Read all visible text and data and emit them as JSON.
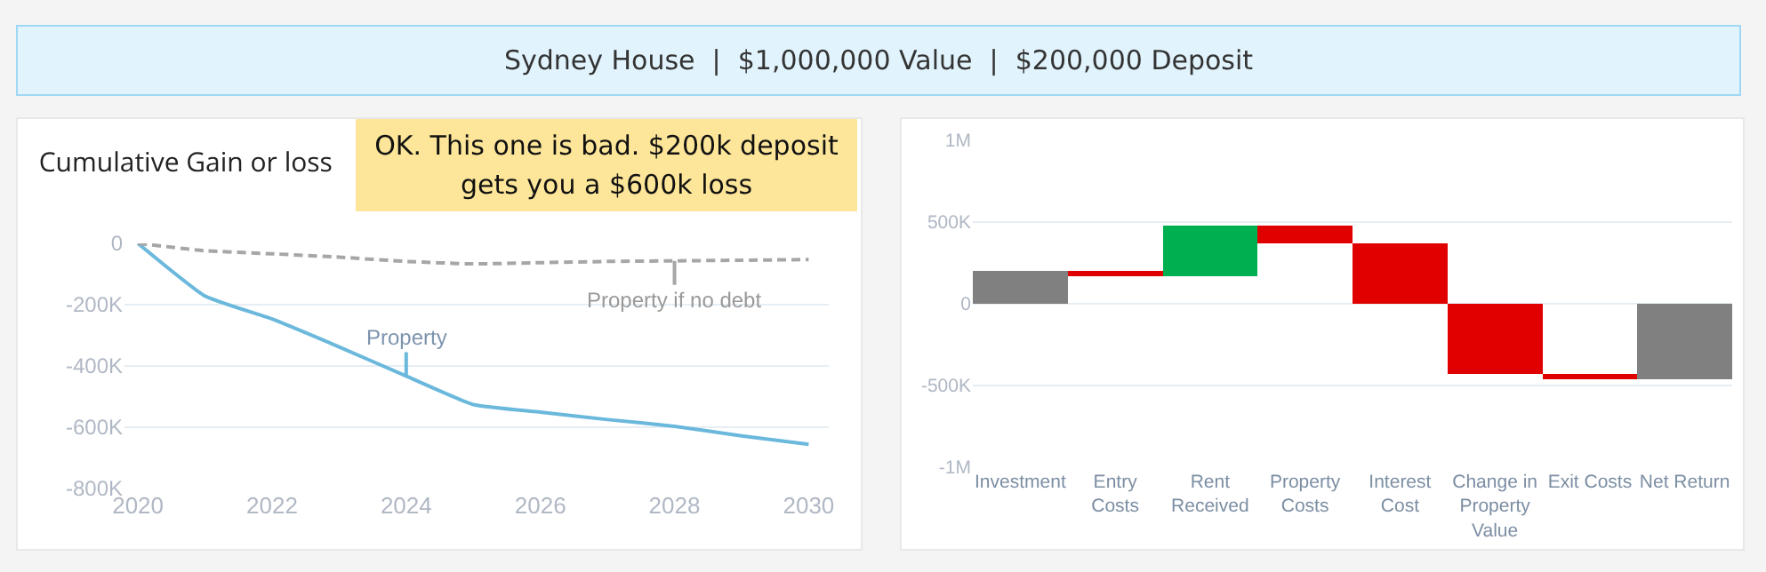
{
  "chart_data": [
    {
      "type": "other",
      "title": "Sydney House  |  $1,000,000 Value  |  $200,000 Deposit"
    },
    {
      "type": "line",
      "title": "Cumulative Gain or loss",
      "annotations": [
        "OK. This one is bad. $200k deposit gets you a $600k loss"
      ],
      "x": [
        2020,
        2021,
        2022,
        2023,
        2024,
        2025,
        2026,
        2027,
        2028,
        2029,
        2030
      ],
      "series": [
        {
          "name": "Property",
          "color": "#6ab8dc",
          "values": [
            0,
            -172000,
            -247000,
            -338000,
            -433000,
            -526000,
            -551000,
            -575000,
            -597000,
            -628000,
            -656000
          ]
        },
        {
          "name": "Property if no debt",
          "color": "#a6a6a6",
          "line_style": "dashed",
          "values": [
            0,
            -24000,
            -34000,
            -45000,
            -59000,
            -67000,
            -63000,
            -59000,
            -57000,
            -55000,
            -53000
          ]
        }
      ],
      "xlim": [
        2019.8,
        2030.3
      ],
      "xticks": [
        2020,
        2022,
        2024,
        2026,
        2028,
        2030
      ],
      "ylim": [
        -800000,
        0
      ],
      "yticks": [
        {
          "value": 0,
          "label": "0"
        },
        {
          "value": -200000,
          "label": "-200K"
        },
        {
          "value": -400000,
          "label": "-400K"
        },
        {
          "value": -600000,
          "label": "-600K"
        },
        {
          "value": -800000,
          "label": "-800K"
        }
      ],
      "grid": "y"
    },
    {
      "type": "bar",
      "categories": [
        "Investment",
        "Entry Costs",
        "Rent Received",
        "Property Costs",
        "Interest Cost",
        "Change in Property Value",
        "Exit Costs",
        "Net Return"
      ],
      "values": [
        200000,
        -30000,
        310000,
        -110000,
        -370000,
        -430000,
        -30000,
        -460000
      ],
      "base": [
        0,
        200000,
        170000,
        480000,
        370000,
        0,
        -430000,
        0
      ],
      "colors": [
        "#808080",
        "#e00000",
        "#00b050",
        "#e00000",
        "#e00000",
        "#e00000",
        "#e00000",
        "#808080"
      ],
      "ylim": [
        -1000000,
        1000000
      ],
      "yticks": [
        {
          "value": 1000000,
          "label": "1M"
        },
        {
          "value": 500000,
          "label": "500K"
        },
        {
          "value": 0,
          "label": "0"
        },
        {
          "value": -500000,
          "label": "-500K"
        },
        {
          "value": -1000000,
          "label": "-1M"
        }
      ],
      "grid": "y"
    }
  ]
}
